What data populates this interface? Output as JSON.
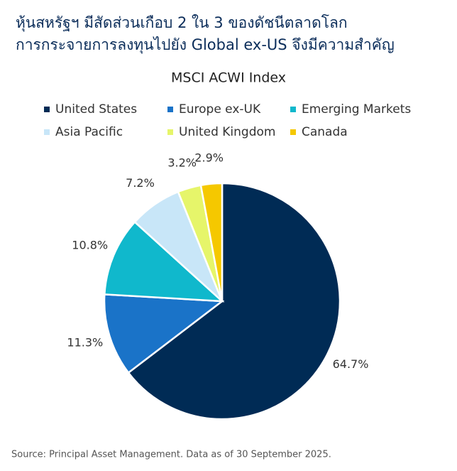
{
  "chart_data": {
    "type": "pie",
    "title": [
      "หุ้นสหรัฐฯ มีสัดส่วนเกือบ 2 ใน 3 ของดัชนีตลาดโลก",
      "การกระจายการลงทุนไปยัง Global ex-US จึงมีความสำคัญ"
    ],
    "subtitle": "MSCI ACWI Index",
    "categories": [
      "United States",
      "Europe ex-UK",
      "Emerging Markets",
      "Asia Pacific",
      "United Kingdom",
      "Canada"
    ],
    "values": [
      64.7,
      11.3,
      10.8,
      7.2,
      3.2,
      2.9
    ],
    "value_labels": [
      "64.7%",
      "11.3%",
      "10.8%",
      "7.2%",
      "3.2%",
      "2.9%"
    ],
    "colors": [
      "#002b55",
      "#1a73c8",
      "#10b8cc",
      "#c8e6f8",
      "#e6f56a",
      "#f5c800"
    ],
    "source": "Source: Principal Asset Management. Data as of 30 September 2025."
  }
}
